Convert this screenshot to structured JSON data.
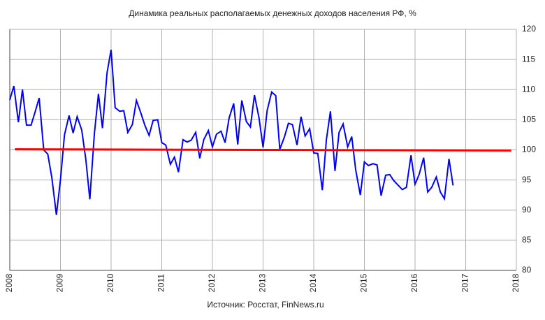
{
  "chart_data": {
    "type": "line",
    "title": "Динамика реальных располагаемых денежных доходов населения РФ, %",
    "source": "Источник: Росстат, FinNews.ru",
    "xlim": [
      2008,
      2018
    ],
    "xticks": [
      2008,
      2009,
      2010,
      2011,
      2012,
      2013,
      2014,
      2015,
      2016,
      2017,
      2018
    ],
    "ylim": [
      80,
      120
    ],
    "yticks": [
      80,
      85,
      90,
      95,
      100,
      105,
      110,
      115,
      120
    ],
    "grid": true,
    "series": [
      {
        "color": "#0000ff",
        "x": [
          2008,
          2008.08,
          2008.17,
          2008.25,
          2008.33,
          2008.42,
          2008.5,
          2008.58,
          2008.67,
          2008.75,
          2008.83,
          2008.92,
          2009,
          2009.08,
          2009.17,
          2009.25,
          2009.33,
          2009.42,
          2009.5,
          2009.58,
          2009.67,
          2009.75,
          2009.83,
          2009.92,
          2010,
          2010.08,
          2010.17,
          2010.25,
          2010.33,
          2010.42,
          2010.5,
          2010.58,
          2010.67,
          2010.75,
          2010.83,
          2010.92,
          2011,
          2011.08,
          2011.17,
          2011.25,
          2011.33,
          2011.42,
          2011.5,
          2011.58,
          2011.67,
          2011.75,
          2011.83,
          2011.92,
          2012,
          2012.08,
          2012.17,
          2012.25,
          2012.33,
          2012.42,
          2012.5,
          2012.58,
          2012.67,
          2012.75,
          2012.83,
          2012.92,
          2013,
          2013.08,
          2013.17,
          2013.25,
          2013.33,
          2013.42,
          2013.5,
          2013.58,
          2013.67,
          2013.75,
          2013.83,
          2013.92,
          2014,
          2014.08,
          2014.17,
          2014.25,
          2014.33,
          2014.42,
          2014.5,
          2014.58,
          2014.67,
          2014.75,
          2014.83,
          2014.92,
          2015,
          2015.08,
          2015.17,
          2015.25,
          2015.33,
          2015.42,
          2015.5,
          2015.58,
          2015.67,
          2015.75,
          2015.83,
          2015.92,
          2016,
          2016.08,
          2016.17,
          2016.25,
          2016.33,
          2016.42,
          2016.5,
          2016.58,
          2016.67,
          2016.75
        ],
        "values": [
          108.3,
          110.6,
          104.6,
          110.0,
          104.1,
          104.1,
          106.3,
          108.6,
          100.0,
          99.3,
          95.4,
          89.2,
          95.0,
          102.5,
          105.7,
          102.8,
          105.5,
          103.3,
          98.5,
          91.8,
          102.7,
          109.3,
          103.6,
          112.8,
          116.6,
          107.0,
          106.4,
          106.5,
          102.9,
          104.2,
          108.2,
          106.3,
          104.0,
          102.4,
          104.9,
          105.0,
          101.2,
          100.8,
          97.6,
          98.8,
          96.3,
          101.7,
          101.3,
          101.6,
          102.9,
          98.6,
          101.7,
          103.2,
          100.5,
          102.6,
          103.1,
          101.2,
          105.3,
          107.7,
          100.9,
          108.2,
          104.7,
          103.8,
          109.1,
          105.3,
          100.4,
          106.5,
          109.6,
          109.0,
          100.1,
          102.1,
          104.4,
          104.2,
          100.8,
          105.5,
          102.3,
          103.5,
          99.5,
          99.4,
          93.3,
          101.7,
          106.4,
          96.5,
          102.9,
          104.3,
          100.5,
          102.2,
          96.6,
          92.5,
          98.0,
          97.4,
          97.7,
          97.5,
          92.4,
          95.8,
          95.9,
          94.9,
          94.1,
          93.4,
          93.8,
          99.1,
          94.3,
          95.9,
          98.7,
          93.0,
          93.8,
          95.5,
          93.0,
          91.9,
          98.5,
          94.1
        ]
      },
      {
        "color": "#ff0000",
        "x": [
          2008.1,
          2017.9
        ],
        "values": [
          100.1,
          99.9
        ]
      }
    ]
  }
}
